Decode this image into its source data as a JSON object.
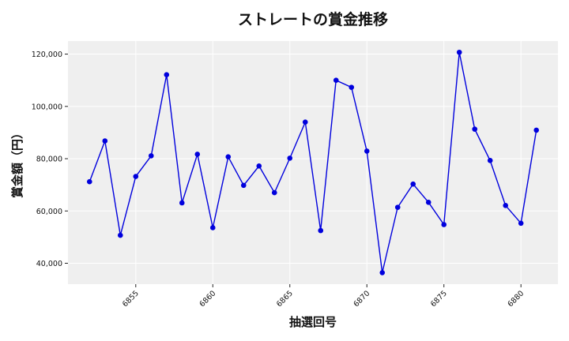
{
  "chart_data": {
    "type": "line",
    "title": "ストレートの賞金推移",
    "xlabel": "抽選回号",
    "ylabel": "賞金額（円）",
    "xlim": [
      6850.6,
      6882.4
    ],
    "ylim": [
      32000,
      125000
    ],
    "x_ticks": [
      6855,
      6860,
      6865,
      6870,
      6875,
      6880
    ],
    "x_tick_labels": [
      "6855",
      "6860",
      "6865",
      "6870",
      "6875",
      "6880"
    ],
    "y_ticks": [
      40000,
      60000,
      80000,
      100000,
      120000
    ],
    "y_tick_labels": [
      "40,000",
      "60,000",
      "80,000",
      "100,000",
      "120,000"
    ],
    "grid": true,
    "background": "#efefef",
    "line_color": "#0000dd",
    "series": [
      {
        "x": [
          6852,
          6853,
          6854,
          6855,
          6856,
          6857,
          6858,
          6859,
          6860,
          6861,
          6862,
          6863,
          6864,
          6865,
          6866,
          6867,
          6868,
          6869,
          6870,
          6871,
          6872,
          6873,
          6874,
          6875,
          6876,
          6877,
          6878,
          6879,
          6880,
          6881
        ],
        "values": [
          71200,
          86800,
          50700,
          73200,
          81100,
          112100,
          63100,
          81700,
          53600,
          80700,
          69800,
          77200,
          67000,
          80200,
          94000,
          52500,
          110000,
          107300,
          82900,
          36400,
          61400,
          70300,
          63300,
          54800,
          120700,
          91300,
          79300,
          62100,
          55300,
          90900
        ]
      }
    ]
  }
}
